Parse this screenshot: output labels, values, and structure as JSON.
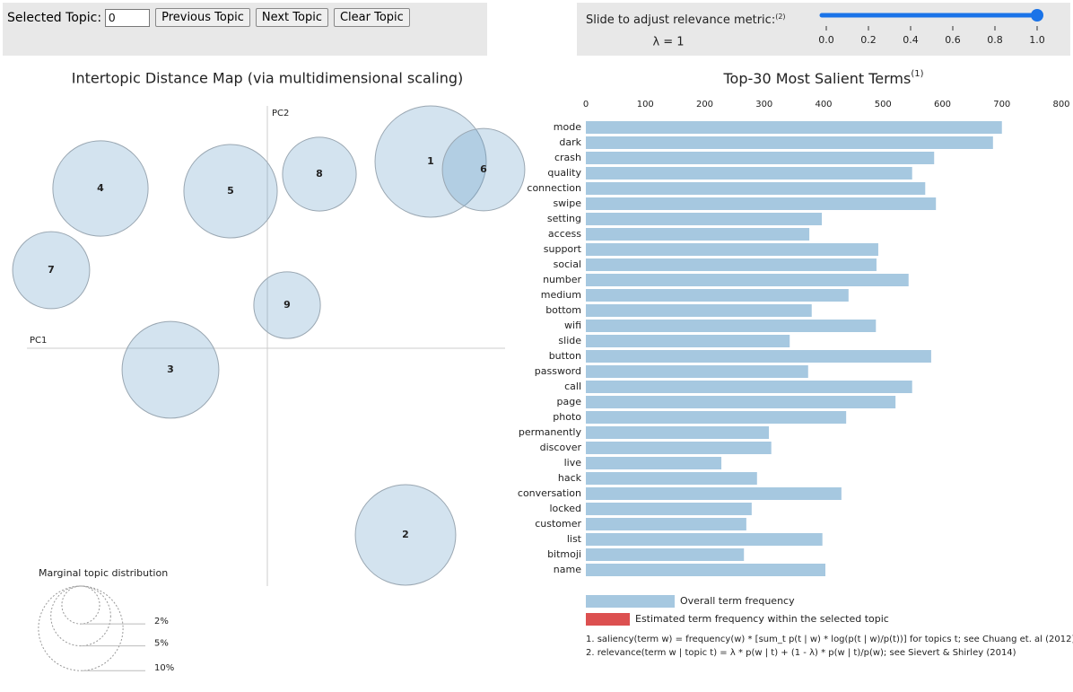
{
  "controls": {
    "selected_topic_label": "Selected Topic:",
    "selected_topic_value": "0",
    "buttons": [
      "Previous Topic",
      "Next Topic",
      "Clear Topic"
    ],
    "slider_label": "Slide to adjust relevance metric:",
    "slider_footnote": "(2)",
    "lambda_label": "λ = 1",
    "slider": {
      "value": 1,
      "xlim": [
        0,
        1
      ],
      "xticks": [
        {
          "value": 0,
          "label": "0.0"
        },
        0.2,
        0.4,
        0.6,
        0.8,
        {
          "value": 1,
          "label": "1.0"
        }
      ]
    }
  },
  "chart_data": [
    {
      "type": "bubble",
      "title": "Intertopic Distance Map (via multidimensional scaling)",
      "xlabel": "PC1",
      "ylabel": "PC2",
      "labels": [
        "1",
        "2",
        "3",
        "4",
        "5",
        "6",
        "7",
        "8",
        "9"
      ],
      "x": [
        0.182,
        0.154,
        -0.108,
        -0.186,
        -0.041,
        0.241,
        -0.241,
        0.058,
        0.022
      ],
      "y": [
        0.208,
        -0.208,
        -0.024,
        0.178,
        0.175,
        0.199,
        0.087,
        0.194,
        0.048
      ],
      "sizes": [
        17.3,
        14.1,
        13.1,
        12.7,
        12.2,
        9.5,
        8.3,
        7.6,
        6.2
      ],
      "xlim": [
        -0.288,
        0.267
      ],
      "ylim": [
        -0.267,
        0.27
      ],
      "color": "#4f8fc0",
      "legend_title": "Marginal topic distribution",
      "legend_sizes": [
        2,
        5,
        10
      ],
      "legend_value_labels": [
        "2%",
        "5%",
        "10%"
      ]
    },
    {
      "type": "hbar",
      "title": "Top-30 Most Salient Terms",
      "title_footnote": "(1)",
      "categories": [
        "mode",
        "dark",
        "crash",
        "quality",
        "connection",
        "swipe",
        "setting",
        "access",
        "support",
        "social",
        "number",
        "medium",
        "bottom",
        "wifi",
        "slide",
        "button",
        "password",
        "call",
        "page",
        "photo",
        "permanently",
        "discover",
        "live",
        "hack",
        "conversation",
        "locked",
        "customer",
        "list",
        "bitmoji",
        "name"
      ],
      "values": [
        700,
        685,
        586,
        549,
        571,
        589,
        397,
        376,
        492,
        489,
        543,
        442,
        380,
        488,
        343,
        581,
        374,
        549,
        521,
        438,
        308,
        312,
        228,
        288,
        430,
        279,
        270,
        398,
        266,
        403
      ],
      "color": "#a6c8e0",
      "xlim": [
        0,
        800
      ],
      "xticks": [
        0,
        100,
        200,
        300,
        400,
        500,
        600,
        700,
        800
      ],
      "legend": [
        {
          "name": "Overall term frequency",
          "color": "#a6c8e0"
        },
        {
          "name": "Estimated term frequency within the selected topic",
          "color": "#dc5050"
        }
      ],
      "notes": [
        "1. saliency(term w) = frequency(w) * [sum_t p(t | w) * log(p(t | w)/p(t))] for topics t; see Chuang et. al (2012)",
        "2. relevance(term w | topic t) = λ * p(w | t) + (1 - λ) * p(w | t)/p(w); see Sievert & Shirley (2014)"
      ]
    }
  ]
}
